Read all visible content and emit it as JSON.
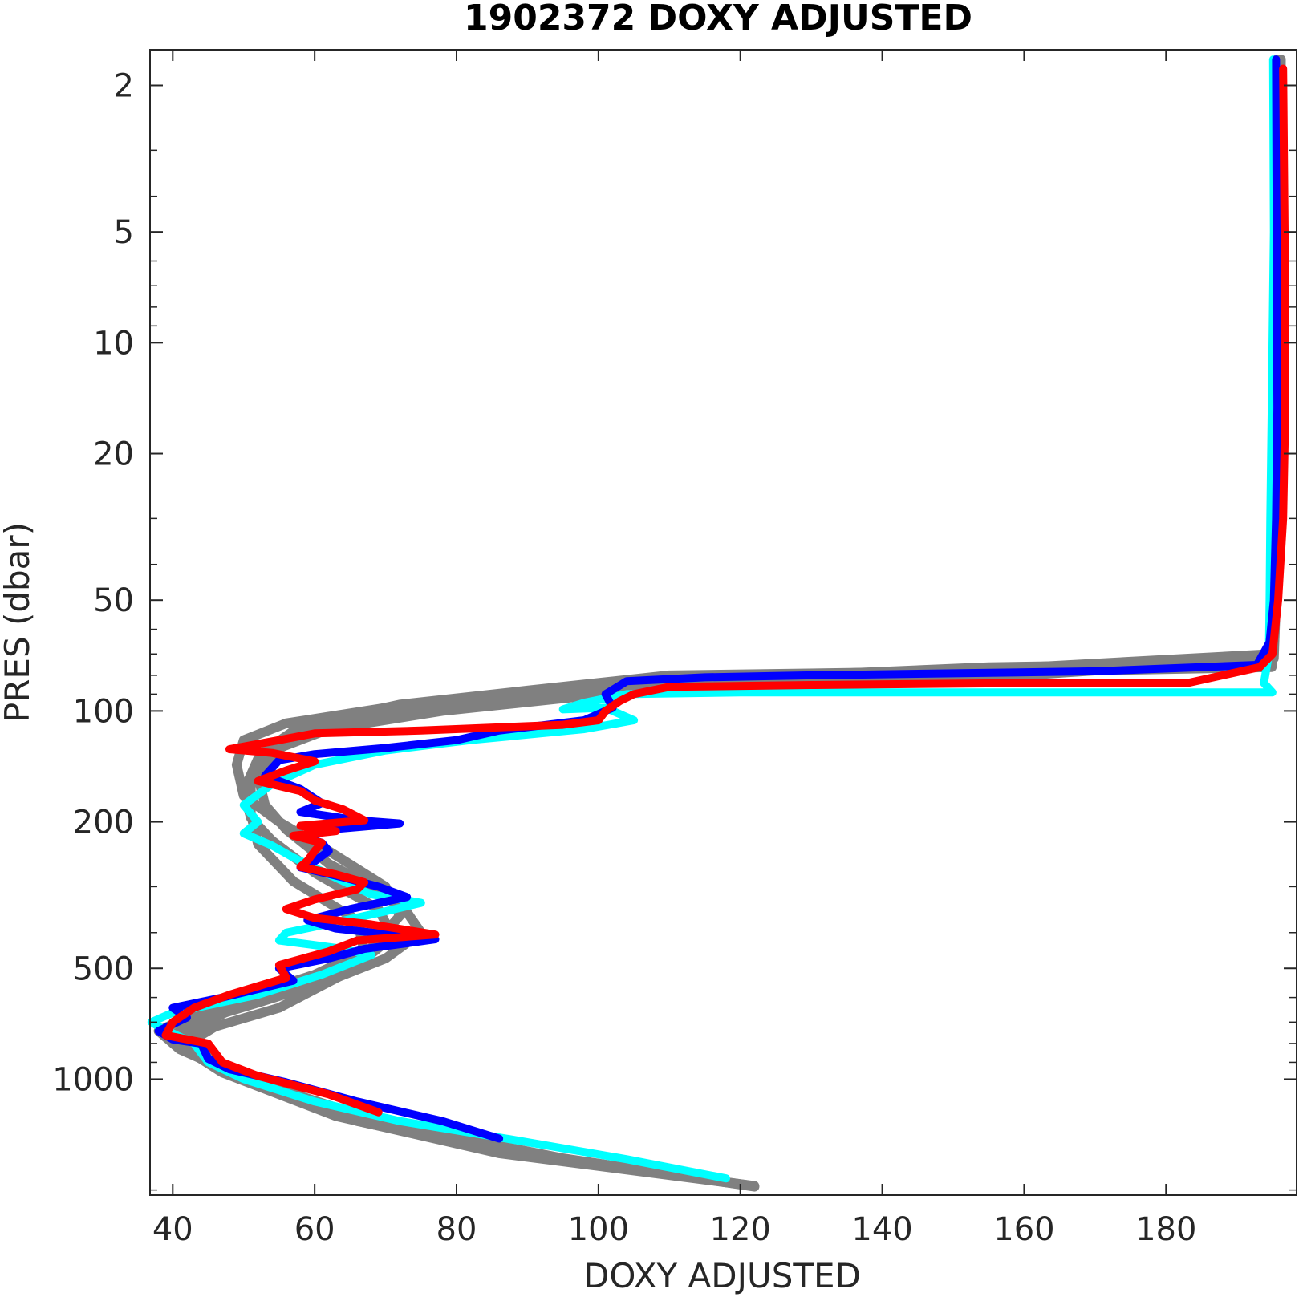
{
  "chart_data": {
    "type": "line",
    "title": "1902372  DOXY ADJUSTED",
    "xlabel": "DOXY ADJUSTED",
    "ylabel": "PRES (dbar)",
    "xlim": [
      36.8,
      198.4
    ],
    "ylim": [
      1.6,
      2065
    ],
    "y_scale": "log",
    "y_reversed": true,
    "grid": false,
    "x_ticks": [
      40,
      60,
      80,
      100,
      120,
      140,
      160,
      180
    ],
    "x_tick_labels": [
      "40",
      "60",
      "80",
      "100",
      "120",
      "140",
      "160",
      "180"
    ],
    "y_ticks": [
      2,
      5,
      10,
      20,
      50,
      100,
      200,
      500,
      1000
    ],
    "y_tick_labels": [
      "2",
      "5",
      "10",
      "20",
      "50",
      "100",
      "200",
      "500",
      "1000"
    ],
    "colors": {
      "background_profiles": "#808080",
      "cyan_profile": "#00ffff",
      "blue_profile": "#0000ff",
      "red_profile": "#ff0000",
      "axes": "#262626"
    },
    "series": [
      {
        "color": "#808080",
        "style": "background",
        "points": [
          [
            195.8,
            1.7
          ],
          [
            195.9,
            5
          ],
          [
            195.8,
            15
          ],
          [
            195.6,
            30
          ],
          [
            195.4,
            50
          ],
          [
            195.0,
            70
          ],
          [
            150,
            78
          ],
          [
            110,
            80
          ],
          [
            90,
            88
          ],
          [
            72,
            96
          ],
          [
            58,
            110
          ],
          [
            53,
            128
          ],
          [
            51,
            160
          ],
          [
            51,
            190
          ],
          [
            52,
            230
          ],
          [
            57,
            290
          ],
          [
            66,
            370
          ],
          [
            67,
            450
          ],
          [
            64,
            520
          ],
          [
            55,
            640
          ],
          [
            46,
            720
          ],
          [
            42,
            800
          ],
          [
            50,
            1000
          ],
          [
            66,
            1300
          ],
          [
            88,
            1600
          ],
          [
            122,
            1950
          ]
        ]
      },
      {
        "color": "#808080",
        "style": "background",
        "points": [
          [
            196.2,
            1.7
          ],
          [
            196.1,
            5
          ],
          [
            195.9,
            15
          ],
          [
            195.7,
            30
          ],
          [
            195.5,
            50
          ],
          [
            195.2,
            72
          ],
          [
            160,
            80
          ],
          [
            120,
            84
          ],
          [
            96,
            92
          ],
          [
            78,
            100
          ],
          [
            62,
            112
          ],
          [
            55,
            126
          ],
          [
            52,
            150
          ],
          [
            53,
            180
          ],
          [
            56,
            210
          ],
          [
            62,
            260
          ],
          [
            72,
            330
          ],
          [
            75,
            400
          ],
          [
            70,
            470
          ],
          [
            62,
            540
          ],
          [
            52,
            620
          ],
          [
            44,
            690
          ],
          [
            40,
            760
          ],
          [
            43,
            850
          ],
          [
            52,
            1020
          ],
          [
            70,
            1320
          ],
          [
            95,
            1640
          ],
          [
            122,
            1960
          ]
        ]
      },
      {
        "color": "#808080",
        "style": "background",
        "points": [
          [
            195.6,
            1.7
          ],
          [
            195.7,
            5
          ],
          [
            195.6,
            15
          ],
          [
            195.4,
            30
          ],
          [
            195.2,
            50
          ],
          [
            194.8,
            74
          ],
          [
            155,
            76
          ],
          [
            115,
            82
          ],
          [
            88,
            90
          ],
          [
            70,
            98
          ],
          [
            56,
            108
          ],
          [
            50,
            120
          ],
          [
            49,
            140
          ],
          [
            50,
            170
          ],
          [
            55,
            200
          ],
          [
            62,
            240
          ],
          [
            70,
            300
          ],
          [
            72,
            360
          ],
          [
            68,
            440
          ],
          [
            60,
            520
          ],
          [
            50,
            600
          ],
          [
            42,
            680
          ],
          [
            38,
            740
          ],
          [
            41,
            830
          ],
          [
            50,
            990
          ],
          [
            68,
            1290
          ],
          [
            92,
            1620
          ],
          [
            121,
            1940
          ]
        ]
      },
      {
        "color": "#808080",
        "style": "background",
        "points": [
          [
            195.9,
            1.7
          ],
          [
            196.0,
            5
          ],
          [
            195.8,
            15
          ],
          [
            195.6,
            30
          ],
          [
            195.4,
            50
          ],
          [
            194.9,
            76
          ],
          [
            148,
            79
          ],
          [
            104,
            86
          ],
          [
            84,
            94
          ],
          [
            66,
            104
          ],
          [
            56,
            118
          ],
          [
            52,
            135
          ],
          [
            50,
            165
          ],
          [
            51,
            195
          ],
          [
            54,
            225
          ],
          [
            60,
            275
          ],
          [
            69,
            345
          ],
          [
            71,
            410
          ],
          [
            66,
            490
          ],
          [
            58,
            560
          ],
          [
            48,
            650
          ],
          [
            43,
            730
          ],
          [
            41,
            810
          ],
          [
            47,
            960
          ],
          [
            63,
            1260
          ],
          [
            86,
            1590
          ],
          [
            120,
            1930
          ]
        ]
      },
      {
        "color": "#00ffff",
        "style": "main",
        "points": [
          [
            195.1,
            1.7
          ],
          [
            195.2,
            5
          ],
          [
            194.9,
            15
          ],
          [
            194.7,
            30
          ],
          [
            194.6,
            50
          ],
          [
            194.5,
            70
          ],
          [
            193.8,
            84
          ],
          [
            195.0,
            89
          ],
          [
            180,
            89
          ],
          [
            150,
            89
          ],
          [
            120,
            89
          ],
          [
            104,
            90
          ],
          [
            98,
            95
          ],
          [
            95,
            99
          ],
          [
            101,
            98
          ],
          [
            105,
            106
          ],
          [
            98,
            112
          ],
          [
            82,
            120
          ],
          [
            70,
            128
          ],
          [
            60,
            140
          ],
          [
            54,
            158
          ],
          [
            50,
            180
          ],
          [
            52,
            200
          ],
          [
            50,
            215
          ],
          [
            54,
            232
          ],
          [
            57,
            250
          ],
          [
            62,
            278
          ],
          [
            68,
            315
          ],
          [
            75,
            332
          ],
          [
            70,
            350
          ],
          [
            63,
            375
          ],
          [
            56,
            400
          ],
          [
            55,
            420
          ],
          [
            63,
            440
          ],
          [
            68,
            460
          ],
          [
            61,
            520
          ],
          [
            52,
            590
          ],
          [
            40,
            660
          ],
          [
            37,
            700
          ],
          [
            38,
            720
          ],
          [
            43,
            800
          ],
          [
            45,
            900
          ],
          [
            50,
            1000
          ],
          [
            60,
            1150
          ],
          [
            72,
            1300
          ],
          [
            87,
            1450
          ],
          [
            104,
            1650
          ],
          [
            118,
            1860
          ]
        ]
      },
      {
        "color": "#0000ff",
        "style": "main",
        "points": [
          [
            195.5,
            1.7
          ],
          [
            195.6,
            5
          ],
          [
            195.7,
            15
          ],
          [
            195.5,
            30
          ],
          [
            195.2,
            50
          ],
          [
            194.6,
            65
          ],
          [
            192.8,
            75
          ],
          [
            170,
            78
          ],
          [
            150,
            79
          ],
          [
            130,
            80
          ],
          [
            115,
            81
          ],
          [
            104,
            83
          ],
          [
            101,
            90
          ],
          [
            102,
            98
          ],
          [
            98,
            106
          ],
          [
            86,
            113
          ],
          [
            80,
            120
          ],
          [
            70,
            126
          ],
          [
            60,
            131
          ],
          [
            55,
            136
          ],
          [
            53,
            150
          ],
          [
            58,
            163
          ],
          [
            61,
            178
          ],
          [
            58,
            188
          ],
          [
            66,
            198
          ],
          [
            72,
            202
          ],
          [
            62,
            210
          ],
          [
            58,
            218
          ],
          [
            61,
            228
          ],
          [
            62,
            240
          ],
          [
            60,
            256
          ],
          [
            58,
            266
          ],
          [
            64,
            283
          ],
          [
            69,
            300
          ],
          [
            73,
            320
          ],
          [
            65,
            345
          ],
          [
            59,
            370
          ],
          [
            63,
            390
          ],
          [
            77,
            417
          ],
          [
            67,
            443
          ],
          [
            62,
            470
          ],
          [
            55,
            500
          ],
          [
            57,
            540
          ],
          [
            47,
            600
          ],
          [
            40,
            640
          ],
          [
            42,
            680
          ],
          [
            38,
            740
          ],
          [
            40,
            780
          ],
          [
            44,
            800
          ],
          [
            45,
            880
          ],
          [
            48,
            940
          ],
          [
            56,
            1020
          ],
          [
            66,
            1150
          ],
          [
            78,
            1300
          ],
          [
            86,
            1450
          ]
        ]
      },
      {
        "color": "#ff0000",
        "style": "main",
        "points": [
          [
            196.5,
            1.8
          ],
          [
            196.7,
            5
          ],
          [
            196.8,
            15
          ],
          [
            196.5,
            30
          ],
          [
            195.8,
            50
          ],
          [
            195.0,
            70
          ],
          [
            193.2,
            76
          ],
          [
            188,
            80
          ],
          [
            183,
            84
          ],
          [
            160,
            84
          ],
          [
            130,
            85
          ],
          [
            110,
            86
          ],
          [
            105,
            90
          ],
          [
            103,
            94
          ],
          [
            101,
            100
          ],
          [
            100,
            106
          ],
          [
            95,
            109
          ],
          [
            75,
            113
          ],
          [
            60,
            115
          ],
          [
            55,
            120
          ],
          [
            48,
            127
          ],
          [
            54,
            130
          ],
          [
            60,
            137
          ],
          [
            56,
            145
          ],
          [
            52,
            155
          ],
          [
            58,
            165
          ],
          [
            60,
            175
          ],
          [
            64,
            185
          ],
          [
            67,
            198
          ],
          [
            58,
            205
          ],
          [
            63,
            212
          ],
          [
            57,
            218
          ],
          [
            61,
            228
          ],
          [
            60,
            240
          ],
          [
            59,
            255
          ],
          [
            58,
            265
          ],
          [
            63,
            278
          ],
          [
            67,
            292
          ],
          [
            66,
            305
          ],
          [
            60,
            325
          ],
          [
            56,
            345
          ],
          [
            60,
            365
          ],
          [
            68,
            380
          ],
          [
            77,
            405
          ],
          [
            66,
            420
          ],
          [
            62,
            450
          ],
          [
            55,
            490
          ],
          [
            56,
            530
          ],
          [
            48,
            590
          ],
          [
            43,
            640
          ],
          [
            40,
            700
          ],
          [
            39,
            760
          ],
          [
            45,
            800
          ],
          [
            47,
            900
          ],
          [
            52,
            980
          ],
          [
            62,
            1100
          ],
          [
            69,
            1230
          ]
        ]
      }
    ]
  }
}
